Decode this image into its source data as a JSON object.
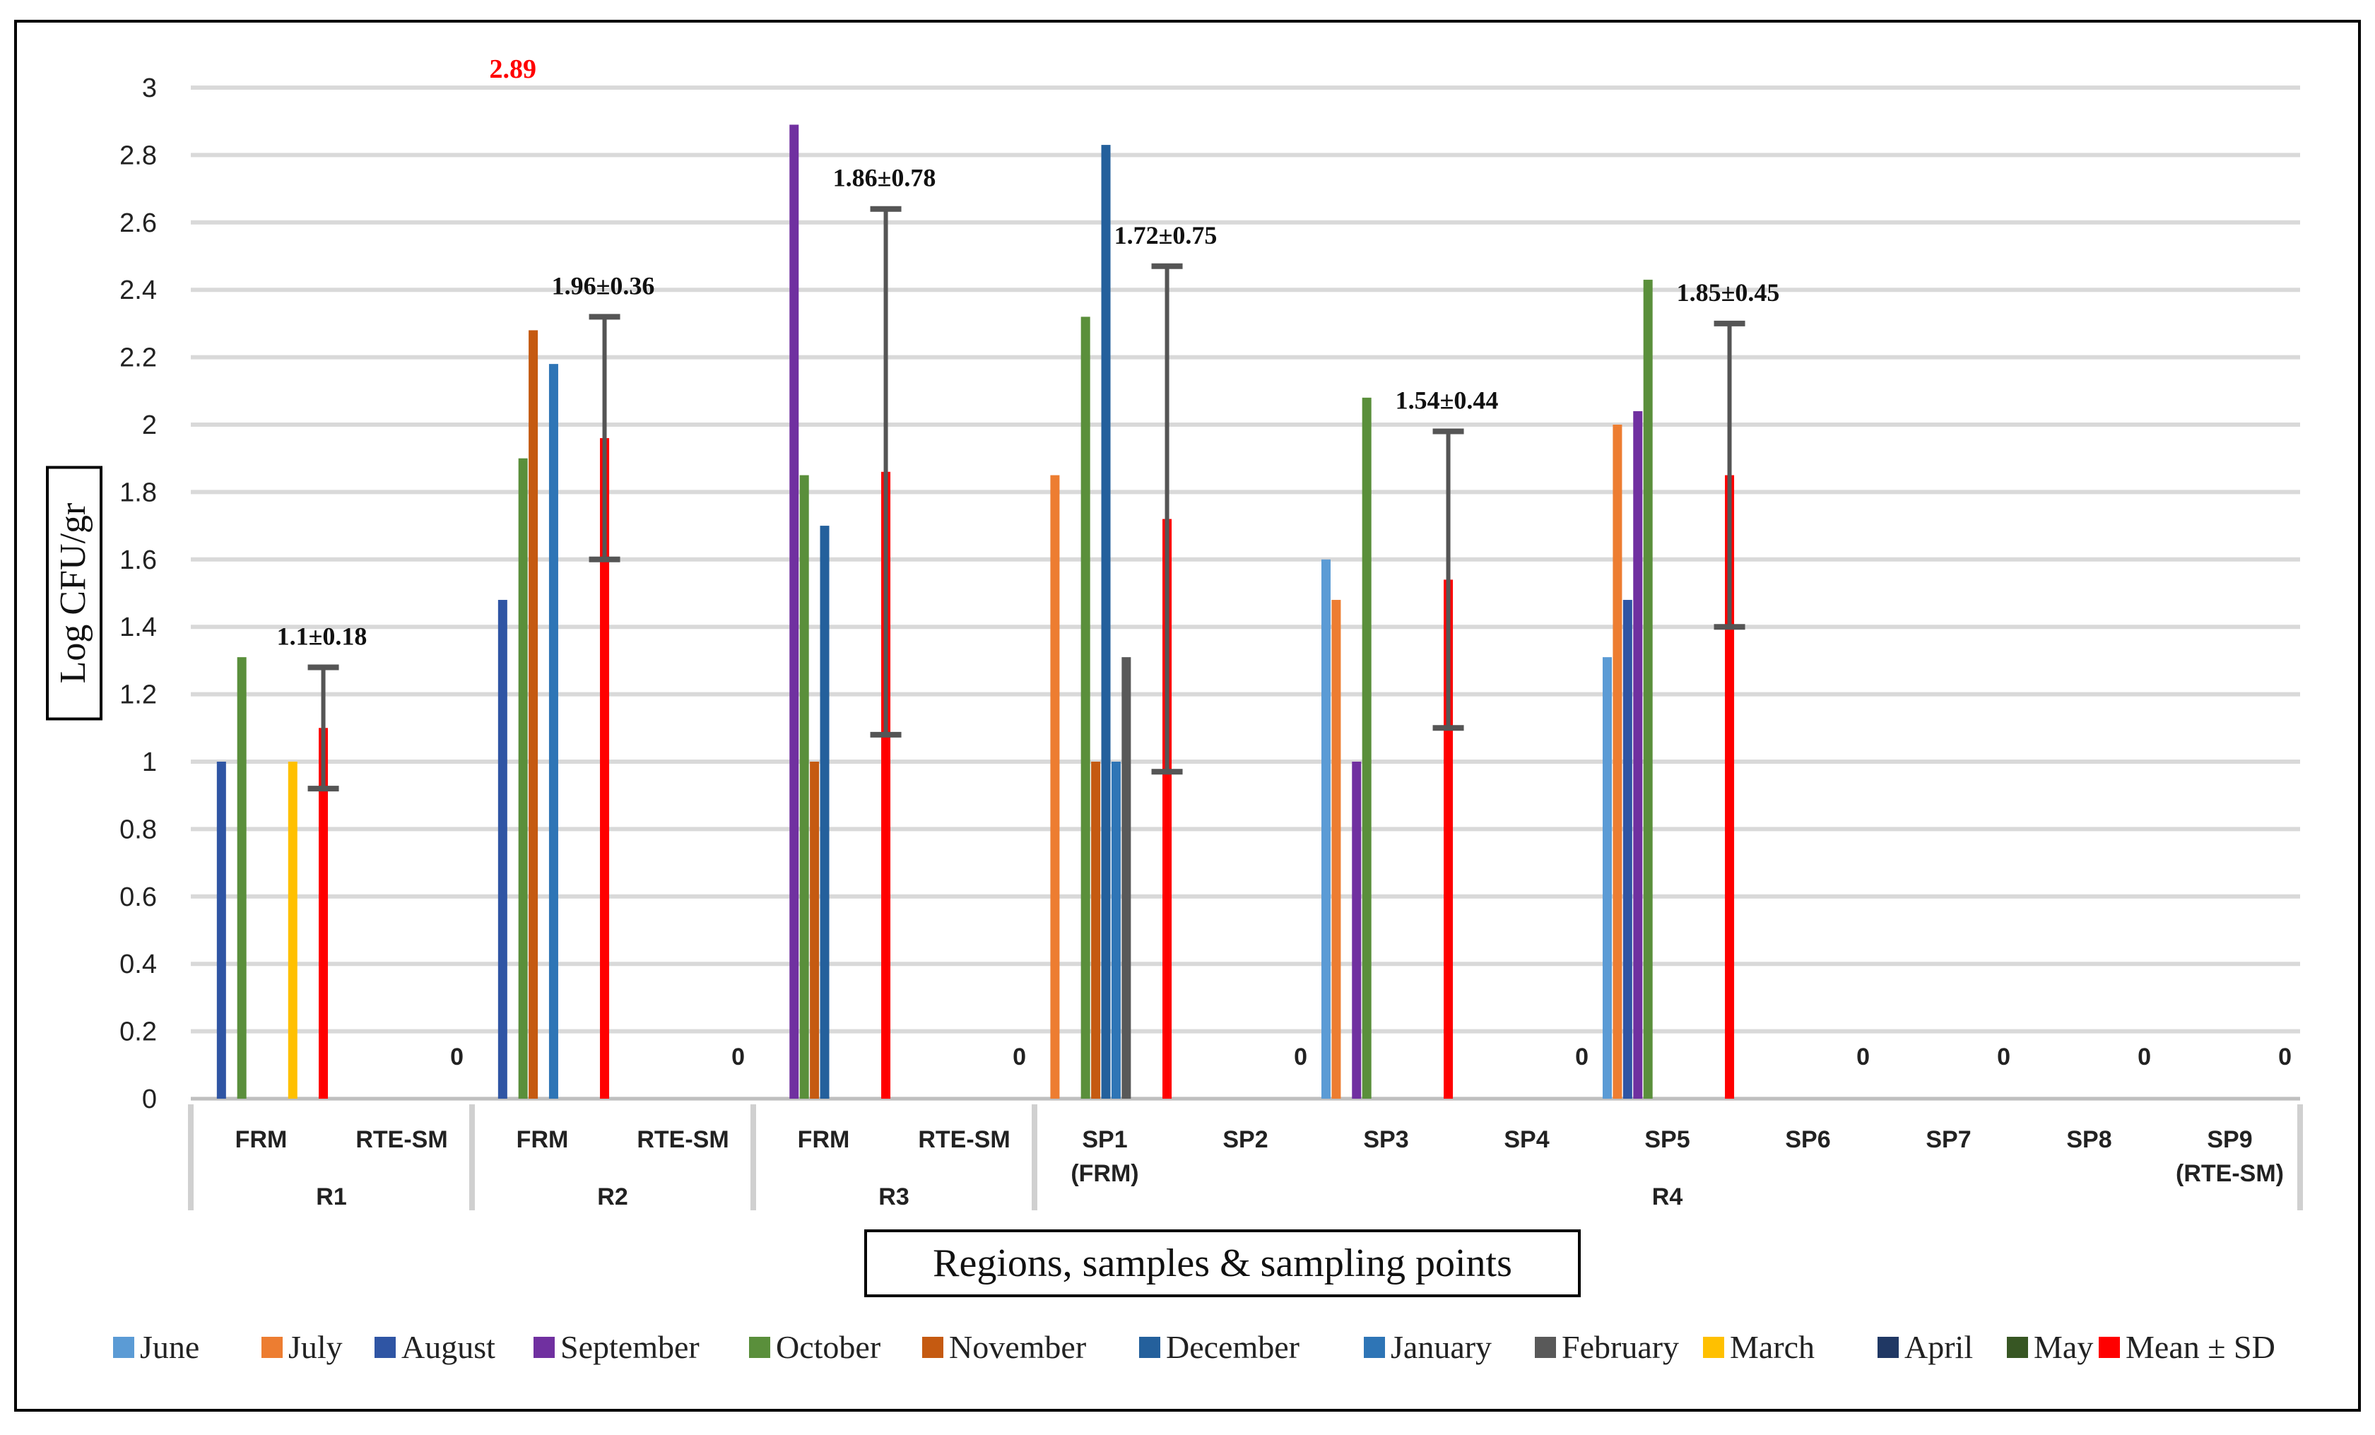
{
  "chart_data": {
    "type": "bar",
    "ylabel": "Log CFU/gr",
    "xlabel": "Regions, samples & sampling points",
    "ylim": [
      0,
      3
    ],
    "y_ticks": [
      "0",
      "0.2",
      "0.4",
      "0.6",
      "0.8",
      "1",
      "1.2",
      "1.4",
      "1.6",
      "1.8",
      "2",
      "2.2",
      "2.4",
      "2.6",
      "2.8",
      "3"
    ],
    "grid": true,
    "legend_position": "bottom",
    "series": [
      {
        "name": "June",
        "color": "#5b9bd5"
      },
      {
        "name": "July",
        "color": "#ed7d31"
      },
      {
        "name": "August",
        "color": "#2f55a4"
      },
      {
        "name": "September",
        "color": "#7030a0"
      },
      {
        "name": "October",
        "color": "#5a8f3b"
      },
      {
        "name": "November",
        "color": "#c55a11"
      },
      {
        "name": "December",
        "color": "#24609c"
      },
      {
        "name": "January",
        "color": "#2e75b6"
      },
      {
        "name": "February",
        "color": "#595959"
      },
      {
        "name": "March",
        "color": "#ffc000"
      },
      {
        "name": "April",
        "color": "#203864"
      },
      {
        "name": "May",
        "color": "#375623"
      },
      {
        "name": "Mean ± SD",
        "color": "#ff0000"
      }
    ],
    "categories": [
      {
        "label": "FRM",
        "label2": "",
        "region": "R1",
        "values": {
          "October": 1.31,
          "August": 1.0,
          "March": 1.0
        },
        "mean": 1.1,
        "sd": 0.18,
        "annotation": "1.1±0.18",
        "zero_label": ""
      },
      {
        "label": "RTE-SM",
        "label2": "",
        "region": "R1",
        "values": {},
        "zero_label": "0"
      },
      {
        "label": "FRM",
        "label2": "",
        "region": "R2",
        "values": {
          "August": 1.48,
          "October": 1.9,
          "November": 2.28,
          "January": 2.18
        },
        "mean": 1.96,
        "sd": 0.36,
        "annotation": "1.96±0.36",
        "zero_label": ""
      },
      {
        "label": "RTE-SM",
        "label2": "",
        "region": "R2",
        "values": {},
        "zero_label": "0"
      },
      {
        "label": "FRM",
        "label2": "",
        "region": "R3",
        "values": {
          "September": 2.89,
          "October": 1.85,
          "November": 1.0,
          "December": 1.7
        },
        "mean": 1.86,
        "sd": 0.78,
        "annotation": "1.86±0.78",
        "zero_label": ""
      },
      {
        "label": "RTE-SM",
        "label2": "",
        "region": "R3",
        "values": {},
        "zero_label": "0"
      },
      {
        "label": "SP1",
        "label2": "(FRM)",
        "region": "R4",
        "values": {
          "July": 1.85,
          "October": 2.32,
          "November": 1.0,
          "December": 2.83,
          "January": 1.0,
          "February": 1.31
        },
        "mean": 1.72,
        "sd": 0.75,
        "annotation": "1.72±0.75",
        "zero_label": ""
      },
      {
        "label": "SP2",
        "label2": "",
        "region": "R4",
        "values": {},
        "zero_label": "0"
      },
      {
        "label": "SP3",
        "label2": "",
        "region": "R4",
        "values": {
          "June": 1.6,
          "July": 1.48,
          "September": 1.0,
          "October": 2.08
        },
        "mean": 1.54,
        "sd": 0.44,
        "annotation": "1.54±0.44",
        "zero_label": ""
      },
      {
        "label": "SP4",
        "label2": "",
        "region": "R4",
        "values": {},
        "zero_label": "0"
      },
      {
        "label": "SP5",
        "label2": "",
        "region": "R4",
        "values": {
          "June": 1.31,
          "July": 2.0,
          "August": 1.48,
          "September": 2.04,
          "October": 2.43
        },
        "mean": 1.85,
        "sd": 0.45,
        "annotation": "1.85±0.45",
        "zero_label": ""
      },
      {
        "label": "SP6",
        "label2": "",
        "region": "R4",
        "values": {},
        "zero_label": "0"
      },
      {
        "label": "SP7",
        "label2": "",
        "region": "R4",
        "values": {},
        "zero_label": "0"
      },
      {
        "label": "SP8",
        "label2": "",
        "region": "R4",
        "values": {},
        "zero_label": "0"
      },
      {
        "label": "SP9",
        "label2": "(RTE-SM)",
        "region": "R4",
        "values": {},
        "zero_label": "0"
      }
    ],
    "regions": [
      {
        "name": "R1",
        "span": [
          0,
          1
        ]
      },
      {
        "name": "R2",
        "span": [
          2,
          3
        ]
      },
      {
        "name": "R3",
        "span": [
          4,
          5
        ]
      },
      {
        "name": "R4",
        "span": [
          6,
          14
        ]
      }
    ],
    "highlight": {
      "text": "2.89",
      "color": "#ff0000",
      "category": 2,
      "series": "September"
    }
  }
}
